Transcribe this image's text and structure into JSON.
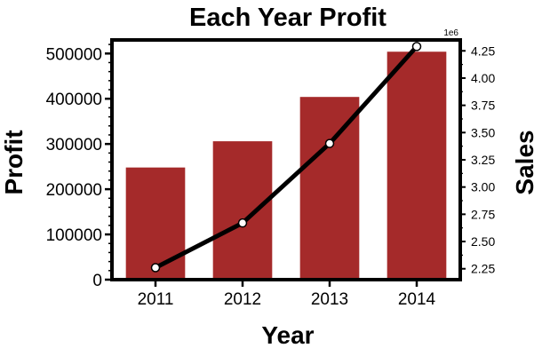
{
  "chart_data": {
    "type": "bar",
    "title": "Each Year Profit",
    "xlabel": "Year",
    "ylabel": "Profit",
    "y2label": "Sales",
    "y2_offset_label": "1e6",
    "categories": [
      "2011",
      "2012",
      "2013",
      "2014"
    ],
    "ylim": [
      0,
      530000
    ],
    "y2lim": [
      2.15,
      4.35
    ],
    "yticks": [
      0,
      100000,
      200000,
      300000,
      400000,
      500000
    ],
    "y2ticks": [
      "2.25",
      "2.50",
      "2.75",
      "3.00",
      "3.25",
      "3.50",
      "3.75",
      "4.00",
      "4.25"
    ],
    "series": [
      {
        "type": "bar",
        "axis": "left",
        "values": [
          248000,
          306000,
          404000,
          504000
        ],
        "color": "#a52a2a"
      },
      {
        "type": "line",
        "axis": "right",
        "values": [
          2.26,
          2.67,
          3.4,
          4.29
        ],
        "color": "#000000",
        "marker_color": "#ffffff"
      }
    ],
    "grid": false
  }
}
